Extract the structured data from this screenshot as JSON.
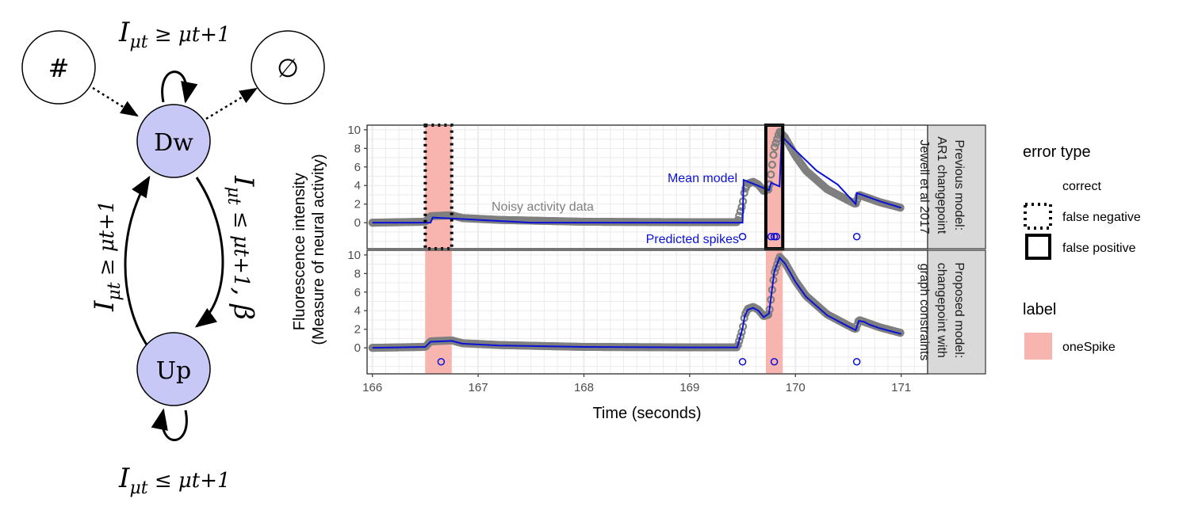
{
  "diagram": {
    "nodes": [
      {
        "id": "hash",
        "label": "#",
        "fill": "#ffffff"
      },
      {
        "id": "empty",
        "label": "∅",
        "fill": "#ffffff"
      },
      {
        "id": "dw",
        "label": "Dw",
        "fill": "#c8c8f7"
      },
      {
        "id": "up",
        "label": "Up",
        "fill": "#c8c8f7"
      }
    ],
    "edges": {
      "dw_self": {
        "base": "I",
        "sub": "μt",
        "rel": " ≥ μt+1"
      },
      "up_self": {
        "base": "I",
        "sub": "μt",
        "rel": " ≤ μt+1"
      },
      "up_to_dw": {
        "base": "I",
        "sub": "μt",
        "rel": " ≥ μt+1"
      },
      "dw_to_up": {
        "base": "I",
        "sub": "μt",
        "rel": " ≤ μt+1",
        "penalty": ", β"
      }
    }
  },
  "chart_data": {
    "type": "line",
    "xlabel": "Time (seconds)",
    "ylabel_line1": "Fluorescence intensity",
    "ylabel_line2": "(Measure of neural activity)",
    "xlim": [
      165.95,
      171.25
    ],
    "xticks": [
      166,
      167,
      168,
      169,
      170,
      171
    ],
    "ylim": [
      -2.8,
      10.5
    ],
    "yticks": [
      0,
      2,
      4,
      6,
      8,
      10
    ],
    "grid": true,
    "data_series": {
      "name": "Noisy activity data",
      "color": "#7f7f7f",
      "x": [
        166.0,
        166.5,
        166.55,
        166.75,
        166.85,
        167.2,
        168.0,
        169.0,
        169.45,
        169.5,
        169.52,
        169.55,
        169.6,
        169.65,
        169.7,
        169.75,
        169.8,
        169.85,
        169.9,
        170.0,
        170.1,
        170.3,
        170.5,
        170.57,
        170.6,
        170.65,
        170.7,
        170.8,
        170.9,
        171.0
      ],
      "y": [
        0.0,
        0.1,
        0.7,
        0.8,
        0.5,
        0.3,
        0.1,
        0.05,
        0.05,
        2.0,
        3.5,
        4.2,
        4.4,
        4.1,
        3.4,
        3.6,
        8.0,
        9.8,
        9.2,
        7.2,
        5.6,
        3.6,
        2.4,
        2.0,
        3.0,
        2.8,
        2.6,
        2.2,
        1.9,
        1.6
      ]
    },
    "panels": [
      {
        "strip": [
          "Previous model:",
          "AR1 changepoint",
          "Jewell et al 2017"
        ],
        "model_x": [
          166.0,
          166.55,
          166.57,
          166.85,
          167.5,
          168.0,
          169.45,
          169.5,
          169.51,
          169.6,
          169.75,
          169.77,
          169.85,
          169.87,
          170.0,
          170.2,
          170.4,
          170.57,
          170.58,
          170.8,
          171.0
        ],
        "model_y": [
          0.0,
          0.0,
          0.55,
          0.4,
          0.0,
          0.0,
          0.0,
          0.0,
          4.6,
          4.2,
          3.5,
          4.3,
          3.9,
          9.3,
          7.8,
          5.6,
          4.1,
          2.0,
          3.2,
          2.3,
          1.6
        ],
        "spikes": [
          169.5,
          169.77,
          169.8,
          169.82,
          170.58
        ],
        "labels": [
          {
            "label": "oneSpike",
            "xmin": 166.5,
            "xmax": 166.75,
            "error": "false negative"
          },
          {
            "label": "oneSpike",
            "xmin": 169.72,
            "xmax": 169.88,
            "error": "false positive"
          }
        ],
        "annotations": {
          "mean_model": "Mean model",
          "noisy_data": "Noisy activity data",
          "predicted_spikes": "Predicted spikes"
        }
      },
      {
        "strip": [
          "Proposed model:",
          "changepoint with",
          "graph constraints"
        ],
        "model_x": [
          166.0,
          166.5,
          166.55,
          166.75,
          166.85,
          167.2,
          168.0,
          169.0,
          169.45,
          169.5,
          169.52,
          169.55,
          169.6,
          169.65,
          169.7,
          169.75,
          169.8,
          169.85,
          169.9,
          170.0,
          170.1,
          170.3,
          170.5,
          170.57,
          170.6,
          170.65,
          170.7,
          170.8,
          170.9,
          171.0
        ],
        "model_y": [
          0.0,
          0.1,
          0.65,
          0.75,
          0.45,
          0.25,
          0.1,
          0.05,
          0.05,
          2.1,
          3.4,
          4.1,
          4.3,
          4.0,
          3.3,
          3.7,
          8.2,
          9.7,
          9.1,
          7.1,
          5.5,
          3.5,
          2.3,
          1.9,
          2.9,
          2.8,
          2.5,
          2.1,
          1.8,
          1.5
        ],
        "spikes": [
          166.65,
          169.5,
          169.8,
          170.58
        ],
        "labels": [
          {
            "label": "oneSpike",
            "xmin": 166.5,
            "xmax": 166.75,
            "error": "correct"
          },
          {
            "label": "oneSpike",
            "xmin": 169.72,
            "xmax": 169.88,
            "error": "correct"
          }
        ]
      }
    ],
    "legends": {
      "error_title": "error type",
      "error_items": [
        "correct",
        "false negative",
        "false positive"
      ],
      "label_title": "label",
      "label_items": [
        {
          "name": "oneSpike",
          "color": "#f8b5b0"
        }
      ]
    },
    "colors": {
      "model": "#0b12d6",
      "label_fill": "#f8b5b0",
      "strip_bg": "#d9d9d9",
      "panel_bg": "#ffffff",
      "grid": "#ebebeb"
    }
  }
}
